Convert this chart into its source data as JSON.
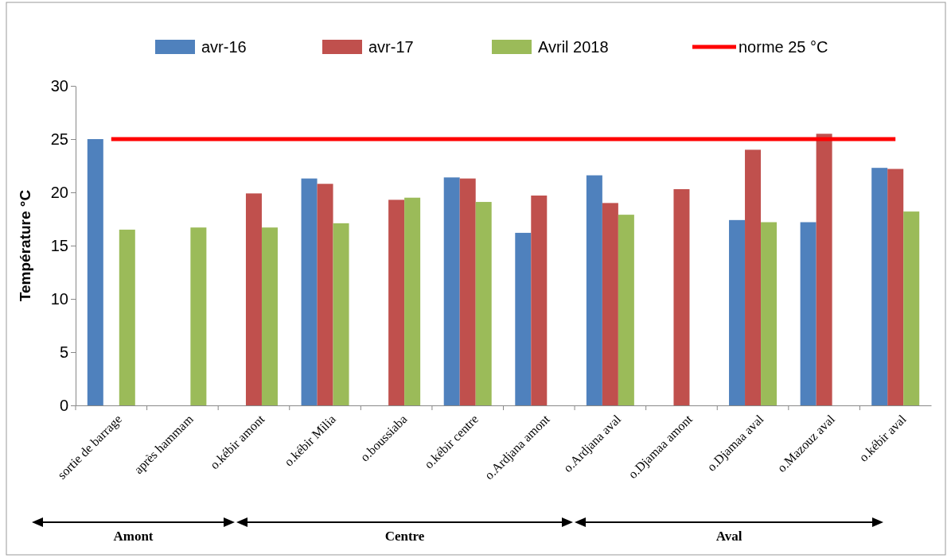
{
  "chart_data": {
    "type": "bar",
    "ylabel": "Température °C",
    "categories": [
      "sortie de barrage",
      "après hammam",
      "o.kébir amont",
      "o.kébir Milia",
      "o.boussiaba",
      "o.kébir centre",
      "o.Ardjana amont",
      "o.Ardjana aval",
      "o.Djamaa amont",
      "o.Djamaa aval",
      "o.Mazouz aval",
      "o.kébir aval"
    ],
    "series": [
      {
        "name": "avr-16",
        "color": "#4f81bd",
        "values": [
          25,
          null,
          null,
          21.3,
          null,
          21.4,
          16.2,
          21.6,
          null,
          17.4,
          17.2,
          22.3
        ]
      },
      {
        "name": "avr-17",
        "color": "#c0504d",
        "values": [
          null,
          null,
          19.9,
          20.8,
          19.3,
          21.3,
          19.7,
          19.0,
          20.3,
          24.0,
          25.5,
          22.2
        ]
      },
      {
        "name": "Avril 2018",
        "color": "#9bbb59",
        "values": [
          16.5,
          16.7,
          16.7,
          17.1,
          19.5,
          19.1,
          null,
          17.9,
          null,
          17.2,
          null,
          18.2
        ]
      },
      {
        "name": "norme 25 °C",
        "type": "line",
        "color": "#ff0000",
        "values": [
          25,
          25,
          25,
          25,
          25,
          25,
          25,
          25,
          25,
          25,
          25,
          25
        ]
      }
    ],
    "ylim": [
      0,
      30
    ],
    "yticks": [
      0,
      5,
      10,
      15,
      20,
      25,
      30
    ],
    "grid": false,
    "legend": "top",
    "marker": "none",
    "annotations": [
      "Amont",
      "Centre",
      "Aval"
    ]
  }
}
